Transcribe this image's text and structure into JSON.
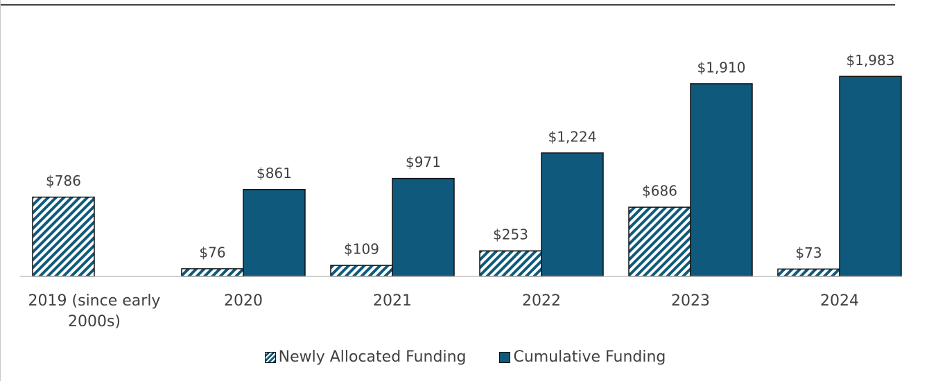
{
  "chart_data": {
    "type": "bar",
    "categories": [
      "2019 (since early 2000s)",
      "2020",
      "2021",
      "2022",
      "2023",
      "2024"
    ],
    "series": [
      {
        "name": "Newly Allocated Funding",
        "color": "#0f5a7c",
        "pattern": "hatch",
        "values": [
          786,
          76,
          109,
          253,
          686,
          73
        ],
        "value_labels": [
          "$786",
          "$76",
          "$109",
          "$253",
          "$686",
          "$73"
        ]
      },
      {
        "name": "Cumulative Funding",
        "color": "#0f5a7c",
        "values": [
          null,
          861,
          971,
          1224,
          1910,
          1983
        ],
        "value_labels": [
          null,
          "$861",
          "$971",
          "$1,224",
          "$1,910",
          "$1,983"
        ]
      }
    ],
    "ylim": [
      0,
      2500
    ],
    "legend": "bottom"
  }
}
